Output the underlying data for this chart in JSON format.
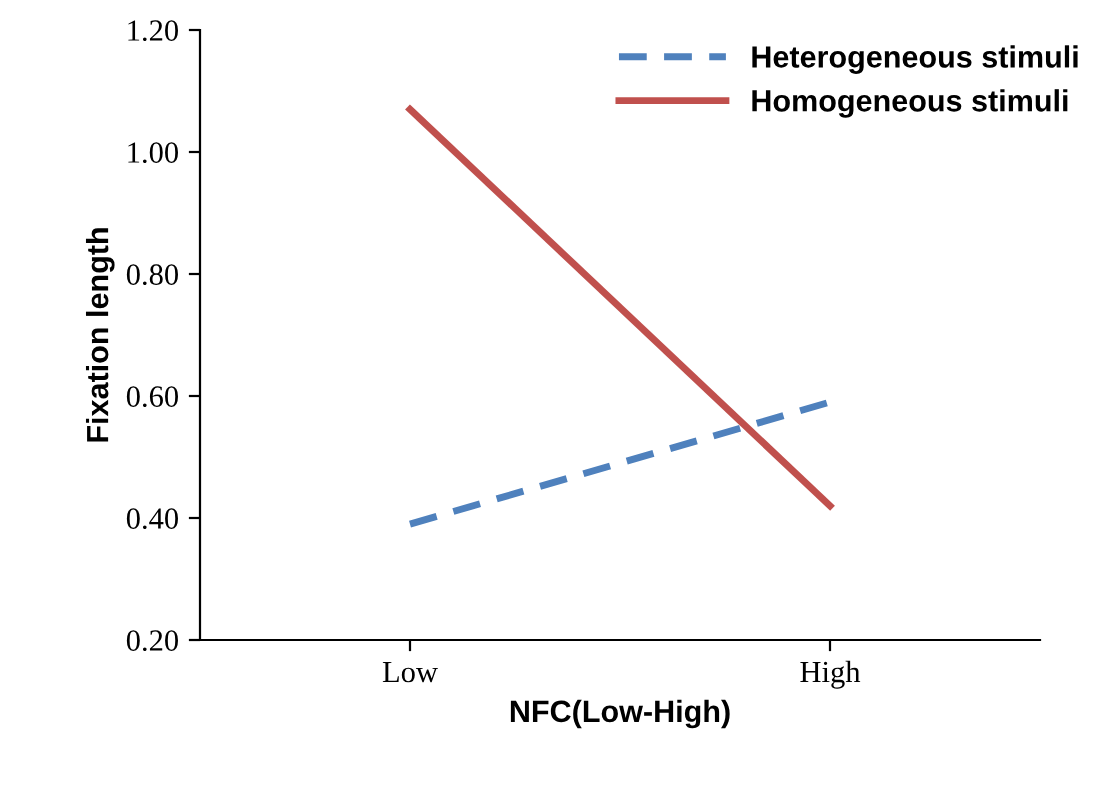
{
  "chart_data": {
    "type": "line",
    "xlabel": "NFC(Low-High)",
    "ylabel": "Fixation length",
    "categories": [
      "Low",
      "High"
    ],
    "series": [
      {
        "name": "Heterogeneous stimuli",
        "color": "#4f81bd",
        "values": [
          0.39,
          0.59
        ],
        "line_style": "dashed"
      },
      {
        "name": "Homogeneous stimuli",
        "color": "#c0504d",
        "values": [
          1.07,
          0.42
        ],
        "line_style": "solid"
      }
    ],
    "ylim": [
      0.2,
      1.2
    ],
    "yticks": [
      {
        "value": 0.2,
        "label": "0.20"
      },
      {
        "value": 0.4,
        "label": "0.40"
      },
      {
        "value": 0.6,
        "label": "0.60"
      },
      {
        "value": 0.8,
        "label": "0.80"
      },
      {
        "value": 1.0,
        "label": "1.00"
      },
      {
        "value": 1.2,
        "label": "1.20"
      }
    ],
    "grid": false,
    "legend": "top right"
  }
}
